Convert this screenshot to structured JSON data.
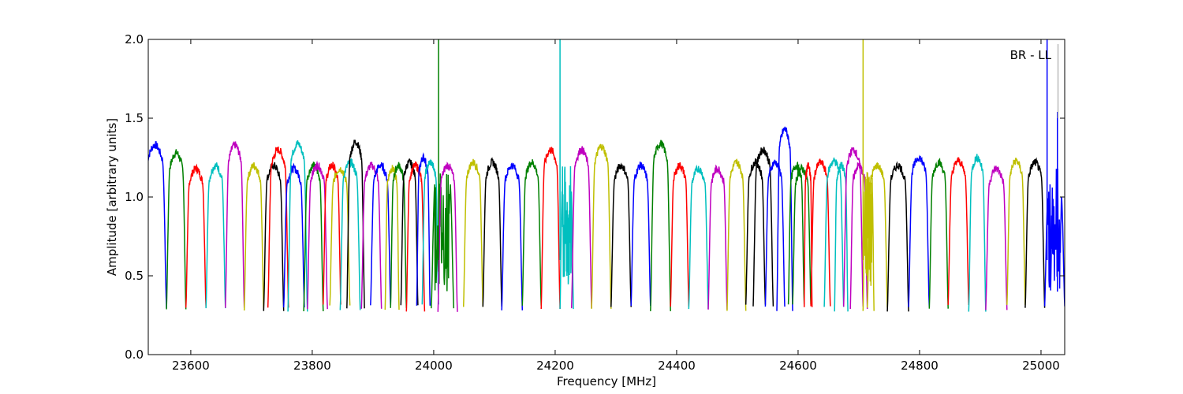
{
  "chart_data": {
    "type": "line",
    "title": "",
    "annotation": "BR - LL",
    "xlabel": "Frequency [MHz]",
    "ylabel": "Amplitude [arbitrary units]",
    "xlim": [
      23530,
      25039
    ],
    "ylim": [
      0.0,
      2.0
    ],
    "xticks": [
      23600,
      23800,
      24000,
      24200,
      24400,
      24600,
      24800,
      25000
    ],
    "yticks": [
      "0.0",
      "0.5",
      "1.0",
      "1.5",
      "2.0"
    ],
    "grid": false,
    "colors": {
      "b": "#0000ff",
      "g": "#008000",
      "r": "#ff0000",
      "c": "#00bfbf",
      "m": "#bf00bf",
      "y": "#bfbf00",
      "k": "#000000"
    },
    "segments": [
      [
        23522,
        23560,
        "b",
        1.33,
        0
      ],
      [
        23560,
        23592,
        "g",
        1.28,
        0
      ],
      [
        23592,
        23625,
        "r",
        1.18,
        0
      ],
      [
        23625,
        23657,
        "c",
        1.2,
        0
      ],
      [
        23657,
        23688,
        "m",
        1.33,
        0
      ],
      [
        23688,
        23720,
        "y",
        1.2,
        0
      ],
      [
        23720,
        23753,
        "k",
        1.2,
        0
      ],
      [
        23727,
        23761,
        "r",
        1.3,
        0
      ],
      [
        23753,
        23787,
        "b",
        1.18,
        0
      ],
      [
        23760,
        23792,
        "c",
        1.34,
        0
      ],
      [
        23786,
        23818,
        "g",
        1.2,
        0
      ],
      [
        23792,
        23825,
        "m",
        1.2,
        0
      ],
      [
        23818,
        23847,
        "r",
        1.2,
        0
      ],
      [
        23829,
        23862,
        "y",
        1.18,
        0
      ],
      [
        23846,
        23879,
        "c",
        1.22,
        0
      ],
      [
        23857,
        23886,
        "k",
        1.35,
        0
      ],
      [
        23881,
        23914,
        "m",
        1.2,
        0
      ],
      [
        23896,
        23929,
        "b",
        1.2,
        0
      ],
      [
        23920,
        23943,
        "y",
        1.18,
        0
      ],
      [
        23929,
        23955,
        "g",
        1.2,
        0
      ],
      [
        23946,
        23974,
        "k",
        1.22,
        0
      ],
      [
        23955,
        23985,
        "r",
        1.2,
        0
      ],
      [
        23972,
        23994,
        "b",
        1.25,
        0
      ],
      [
        23981,
        24008,
        "c",
        1.22,
        0
      ],
      [
        23996,
        24033,
        "g",
        1.2,
        1
      ],
      [
        24007,
        24039,
        "m",
        1.2,
        0
      ],
      [
        24049,
        24081,
        "y",
        1.22,
        0
      ],
      [
        24081,
        24112,
        "k",
        1.22,
        0
      ],
      [
        24112,
        24146,
        "b",
        1.2,
        0
      ],
      [
        24146,
        24177,
        "g",
        1.22,
        0
      ],
      [
        24177,
        24208,
        "r",
        1.3,
        0
      ],
      [
        24208,
        24230,
        "c",
        1.15,
        1
      ],
      [
        24227,
        24260,
        "m",
        1.3,
        0
      ],
      [
        24260,
        24292,
        "y",
        1.32,
        0
      ],
      [
        24292,
        24325,
        "k",
        1.2,
        0
      ],
      [
        24325,
        24357,
        "b",
        1.2,
        0
      ],
      [
        24357,
        24390,
        "g",
        1.34,
        0
      ],
      [
        24390,
        24420,
        "r",
        1.2,
        0
      ],
      [
        24420,
        24452,
        "c",
        1.18,
        0
      ],
      [
        24452,
        24483,
        "m",
        1.18,
        0
      ],
      [
        24483,
        24514,
        "y",
        1.22,
        0
      ],
      [
        24514,
        24546,
        "k",
        1.22,
        0
      ],
      [
        24526,
        24559,
        "k",
        1.3,
        0
      ],
      [
        24546,
        24578,
        "b",
        1.22,
        0
      ],
      [
        24565,
        24591,
        "b",
        1.43,
        0
      ],
      [
        24584,
        24610,
        "g",
        1.2,
        0
      ],
      [
        24591,
        24621,
        "g",
        1.18,
        0
      ],
      [
        24610,
        24623,
        "r",
        1.2,
        0
      ],
      [
        24621,
        24653,
        "r",
        1.22,
        0
      ],
      [
        24643,
        24675,
        "c",
        1.23,
        0
      ],
      [
        24660,
        24682,
        "c",
        1.2,
        0
      ],
      [
        24675,
        24707,
        "m",
        1.3,
        0
      ],
      [
        24686,
        24714,
        "m",
        1.2,
        0
      ],
      [
        24707,
        24725,
        "y",
        1.15,
        1
      ],
      [
        24714,
        24747,
        "y",
        1.2,
        0
      ],
      [
        24747,
        24782,
        "k",
        1.2,
        0
      ],
      [
        24782,
        24816,
        "b",
        1.25,
        0
      ],
      [
        24816,
        24847,
        "g",
        1.22,
        0
      ],
      [
        24847,
        24881,
        "r",
        1.23,
        0
      ],
      [
        24881,
        24909,
        "c",
        1.25,
        0
      ],
      [
        24909,
        24944,
        "m",
        1.18,
        0
      ],
      [
        24944,
        24974,
        "y",
        1.23,
        0
      ],
      [
        24974,
        25006,
        "k",
        1.22,
        0
      ],
      [
        25006,
        25039,
        "b",
        1.1,
        1
      ]
    ],
    "spikes": [
      [
        24008,
        0.6,
        2.05,
        "g"
      ],
      [
        24208,
        0.6,
        2.05,
        "c"
      ],
      [
        24707,
        0.6,
        2.05,
        "y"
      ],
      [
        25010,
        0.6,
        2.05,
        "b"
      ],
      [
        25027,
        0.4,
        1.54,
        "b"
      ],
      [
        25028,
        1.5,
        1.97,
        "gray"
      ]
    ]
  }
}
